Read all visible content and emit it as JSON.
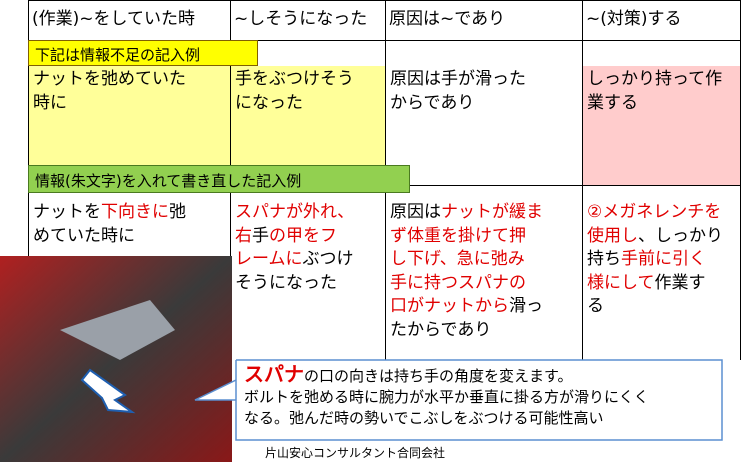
{
  "table": {
    "header": [
      "(作業)~をしていた時",
      "~しそうになった",
      "原因は~であり",
      "~(対策)する"
    ],
    "example_label": "下記は情報不足の記入例",
    "example_row": [
      [
        [
          {
            "text": "ナットを弛めていた"
          }
        ],
        [
          {
            "text": "時に"
          }
        ]
      ],
      [
        [
          {
            "text": "手をぶつけそう"
          }
        ],
        [
          {
            "text": "になった"
          }
        ]
      ],
      [
        [
          {
            "text": "原因は手が滑った"
          }
        ],
        [
          {
            "text": "からであり"
          }
        ]
      ],
      [
        [
          {
            "text": "しっかり持って作"
          }
        ],
        [
          {
            "text": "業する"
          }
        ]
      ]
    ],
    "revised_label": "情報(朱文字)を入れて書き直した記入例",
    "revised_row": [
      [
        [
          {
            "text": "ナットを"
          },
          {
            "text": "下向きに",
            "color": "#e00000"
          },
          {
            "text": "弛"
          }
        ],
        [
          {
            "text": "めていた時に"
          }
        ]
      ],
      [
        [
          {
            "text": "スパナが外れ、",
            "color": "#e00000"
          }
        ],
        [
          {
            "text": "右",
            "color": "#e00000"
          },
          {
            "text": "手"
          },
          {
            "text": "の甲を",
            "color": "#e00000"
          },
          {
            "text": "フ",
            "color": "#e00000"
          }
        ],
        [
          {
            "text": "レームに",
            "color": "#e00000"
          },
          {
            "text": "ぶつけ"
          }
        ],
        [
          {
            "text": "そうになった"
          }
        ]
      ],
      [
        [
          {
            "text": "原因は"
          },
          {
            "text": "ナットが緩ま",
            "color": "#e00000"
          }
        ],
        [
          {
            "text": "ず体重を掛けて押",
            "color": "#e00000"
          }
        ],
        [
          {
            "text": "し下げ、急に弛み",
            "color": "#e00000"
          }
        ],
        [
          {
            "text": "手に持つスパナの",
            "color": "#e00000"
          }
        ],
        [
          {
            "text": "口がナットから",
            "color": "#e00000"
          },
          {
            "text": "滑っ"
          }
        ],
        [
          {
            "text": "たからであり"
          }
        ]
      ],
      [
        [
          {
            "text": "②メガネレンチを",
            "color": "#e00000"
          }
        ],
        [
          {
            "text": "使用し",
            "color": "#e00000"
          },
          {
            "text": "、しっかり"
          }
        ],
        [
          {
            "text": "持ち"
          },
          {
            "text": "手前に引く",
            "color": "#e00000"
          }
        ],
        [
          {
            "text": "様にして",
            "color": "#e00000"
          },
          {
            "text": "作業す"
          }
        ],
        [
          {
            "text": "る"
          }
        ]
      ]
    ]
  },
  "callout": [
    [
      {
        "text": "スパナ",
        "color": "#e00000"
      },
      {
        "text": "の口の向きは持ち手の角度を変えます。"
      }
    ],
    [
      {
        "text": "ボルトを弛める時に腕力が水平か垂直に掛る方が滑りにくく"
      }
    ],
    [
      {
        "text": "なる。弛んだ時の勢いでこぶしをぶつける可能性高い"
      }
    ]
  ],
  "footer": "片山安心コンサルタント合同会社"
}
